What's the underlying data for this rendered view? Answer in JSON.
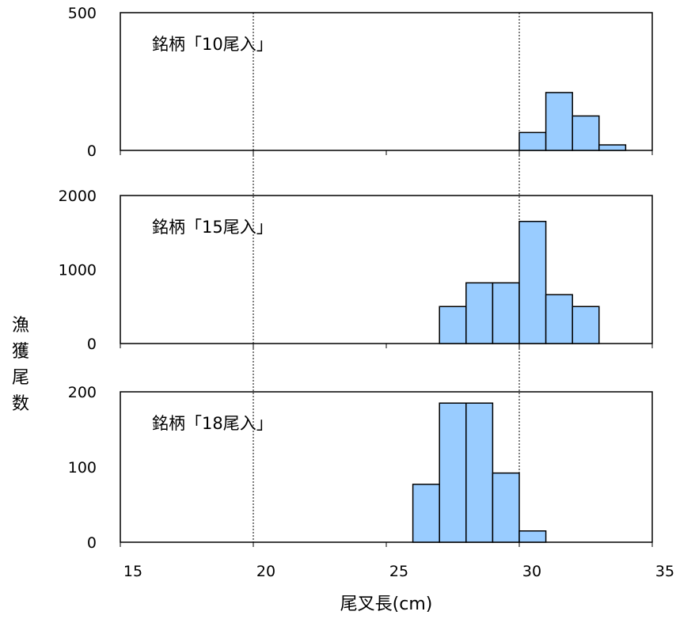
{
  "chart_data": {
    "type": "bar",
    "xlabel": "尾叉長(cm)",
    "ylabel": "漁獲尾数",
    "x_range": [
      15,
      35
    ],
    "x_ticks": [
      15,
      20,
      25,
      30,
      35
    ],
    "reference_lines_x": [
      20,
      30
    ],
    "bar_color": "#99ccff",
    "bar_edge_color": "#000000",
    "panels": [
      {
        "label": "銘柄「10尾入」",
        "ylim": [
          0,
          500
        ],
        "y_ticks": [
          0,
          500
        ],
        "bins": [
          {
            "x0": 30,
            "x1": 31,
            "value": 65
          },
          {
            "x0": 31,
            "x1": 32,
            "value": 210
          },
          {
            "x0": 32,
            "x1": 33,
            "value": 125
          },
          {
            "x0": 33,
            "x1": 34,
            "value": 20
          }
        ]
      },
      {
        "label": "銘柄「15尾入」",
        "ylim": [
          0,
          2000
        ],
        "y_ticks": [
          0,
          1000,
          2000
        ],
        "bins": [
          {
            "x0": 27,
            "x1": 28,
            "value": 500
          },
          {
            "x0": 28,
            "x1": 29,
            "value": 820
          },
          {
            "x0": 29,
            "x1": 30,
            "value": 820
          },
          {
            "x0": 30,
            "x1": 31,
            "value": 1650
          },
          {
            "x0": 31,
            "x1": 32,
            "value": 660
          },
          {
            "x0": 32,
            "x1": 33,
            "value": 500
          }
        ]
      },
      {
        "label": "銘柄「18尾入」",
        "ylim": [
          0,
          200
        ],
        "y_ticks": [
          0,
          100,
          200
        ],
        "bins": [
          {
            "x0": 26,
            "x1": 27,
            "value": 77
          },
          {
            "x0": 27,
            "x1": 28,
            "value": 185
          },
          {
            "x0": 28,
            "x1": 29,
            "value": 185
          },
          {
            "x0": 29,
            "x1": 30,
            "value": 92
          },
          {
            "x0": 30,
            "x1": 31,
            "value": 15
          }
        ]
      }
    ]
  }
}
